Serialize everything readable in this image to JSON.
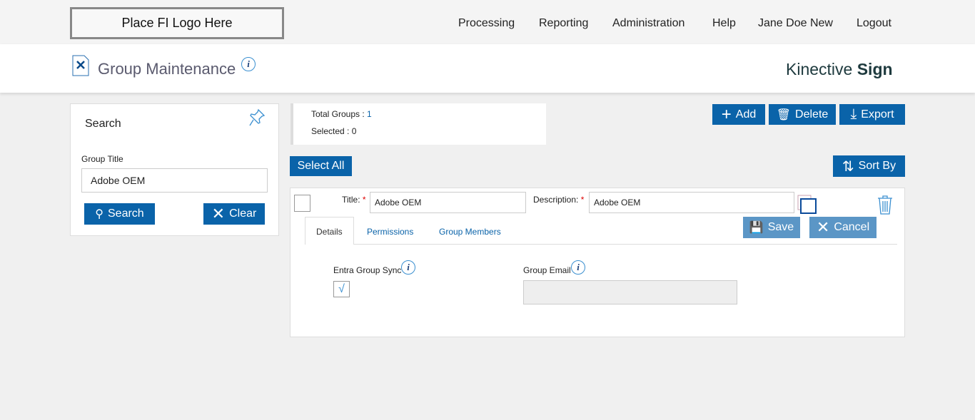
{
  "top": {
    "logo": "Place FI Logo Here",
    "nav": [
      "Processing",
      "Reporting",
      "Administration",
      "Help",
      "Jane Doe New",
      "Logout"
    ]
  },
  "header": {
    "title": "Group Maintenance",
    "brand_light": "Kinective",
    "brand_bold": "Sign"
  },
  "search": {
    "title": "Search",
    "group_title_label": "Group Title",
    "group_title_value": "Adobe OEM",
    "search_btn": "Search",
    "clear_btn": "Clear"
  },
  "summary": {
    "total_label": "Total Groups :",
    "total": "1",
    "selected_label": "Selected :",
    "selected": "0"
  },
  "toolbar": {
    "add": "Add",
    "delete": "Delete",
    "export": "Export",
    "select_all": "Select All",
    "sort_by": "Sort By"
  },
  "group": {
    "title_label": "Title:",
    "title_value": "Adobe OEM",
    "desc_label": "Description:",
    "desc_value": "Adobe OEM",
    "required": "*",
    "save": "Save",
    "cancel": "Cancel",
    "tabs": [
      "Details",
      "Permissions",
      "Group Members"
    ],
    "entra_label": "Entra Group Sync",
    "entra_checked": true,
    "email_label": "Group Email",
    "email_value": ""
  },
  "colors": {
    "primary": "#0a63a9",
    "disabled": "#5b96c6"
  }
}
